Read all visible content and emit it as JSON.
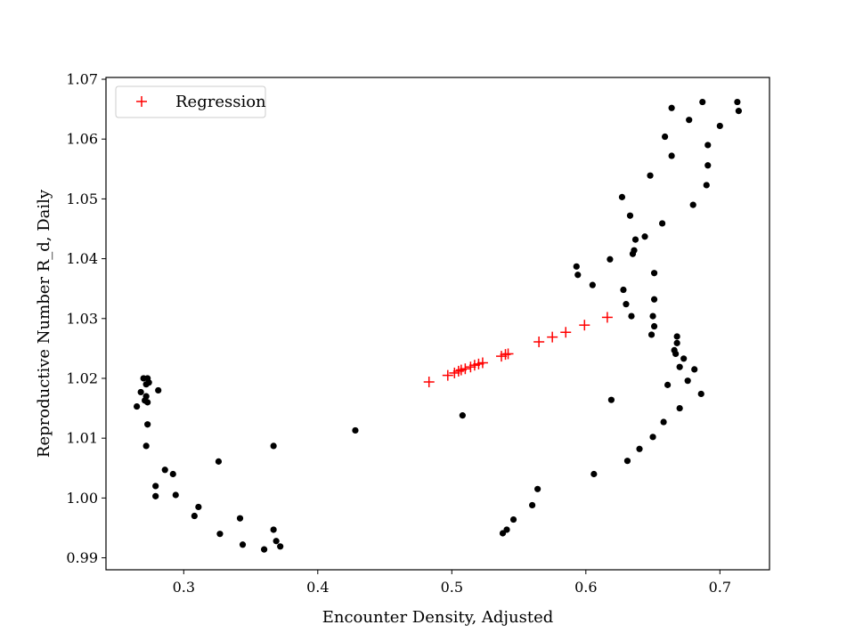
{
  "chart_data": {
    "type": "scatter",
    "title": "",
    "xlabel": "Encounter Density, Adjusted",
    "ylabel": "Reproductive Number R_d, Daily",
    "xlim": [
      0.242,
      0.737
    ],
    "ylim": [
      0.988,
      1.0703
    ],
    "x_ticks": [
      0.3,
      0.4,
      0.5,
      0.6,
      0.7
    ],
    "x_tick_labels": [
      "0.3",
      "0.4",
      "0.5",
      "0.6",
      "0.7"
    ],
    "y_ticks": [
      0.99,
      1.0,
      1.01,
      1.02,
      1.03,
      1.04,
      1.05,
      1.06,
      1.07
    ],
    "y_tick_labels": [
      "0.99",
      "1.00",
      "1.01",
      "1.02",
      "1.03",
      "1.04",
      "1.05",
      "1.06",
      "1.07"
    ],
    "grid": false,
    "legend": {
      "position": "top-left",
      "entries": [
        "Regression"
      ]
    },
    "colors": {
      "data_points": "#000000",
      "regression": "#ff0000"
    },
    "series": [
      {
        "name": "",
        "marker": "circle",
        "points": [
          [
            0.265,
            1.0153
          ],
          [
            0.268,
            1.0177
          ],
          [
            0.27,
            1.02
          ],
          [
            0.271,
            1.0163
          ],
          [
            0.272,
            1.019
          ],
          [
            0.273,
            1.02
          ],
          [
            0.272,
            1.017
          ],
          [
            0.273,
            1.016
          ],
          [
            0.274,
            1.0193
          ],
          [
            0.281,
            1.018
          ],
          [
            0.273,
            1.0123
          ],
          [
            0.272,
            1.0087
          ],
          [
            0.286,
            1.0047
          ],
          [
            0.292,
            1.004
          ],
          [
            0.279,
            1.002
          ],
          [
            0.279,
            1.0003
          ],
          [
            0.294,
            1.0005
          ],
          [
            0.308,
            0.997
          ],
          [
            0.311,
            0.9985
          ],
          [
            0.326,
            1.0061
          ],
          [
            0.327,
            0.994
          ],
          [
            0.342,
            0.9966
          ],
          [
            0.344,
            0.9922
          ],
          [
            0.36,
            0.9914
          ],
          [
            0.367,
            0.9947
          ],
          [
            0.369,
            0.9928
          ],
          [
            0.372,
            0.9919
          ],
          [
            0.367,
            1.0087
          ],
          [
            0.428,
            1.0113
          ],
          [
            0.508,
            1.0138
          ],
          [
            0.538,
            0.9941
          ],
          [
            0.541,
            0.9947
          ],
          [
            0.546,
            0.9964
          ],
          [
            0.56,
            0.9988
          ],
          [
            0.564,
            1.0015
          ],
          [
            0.593,
            1.0387
          ],
          [
            0.594,
            1.0373
          ],
          [
            0.605,
            1.0356
          ],
          [
            0.606,
            1.004
          ],
          [
            0.618,
            1.0399
          ],
          [
            0.619,
            1.0164
          ],
          [
            0.627,
            1.0503
          ],
          [
            0.628,
            1.0348
          ],
          [
            0.63,
            1.0324
          ],
          [
            0.631,
            1.0062
          ],
          [
            0.633,
            1.0472
          ],
          [
            0.634,
            1.0304
          ],
          [
            0.635,
            1.0408
          ],
          [
            0.636,
            1.0414
          ],
          [
            0.637,
            1.0432
          ],
          [
            0.64,
            1.0082
          ],
          [
            0.644,
            1.0437
          ],
          [
            0.648,
            1.0539
          ],
          [
            0.649,
            1.0273
          ],
          [
            0.65,
            1.0102
          ],
          [
            0.65,
            1.0304
          ],
          [
            0.651,
            1.0287
          ],
          [
            0.651,
            1.0332
          ],
          [
            0.651,
            1.0376
          ],
          [
            0.657,
            1.0459
          ],
          [
            0.658,
            1.0127
          ],
          [
            0.659,
            1.0604
          ],
          [
            0.661,
            1.0189
          ],
          [
            0.664,
            1.0652
          ],
          [
            0.664,
            1.0572
          ],
          [
            0.666,
            1.0247
          ],
          [
            0.667,
            1.0241
          ],
          [
            0.668,
            1.027
          ],
          [
            0.668,
            1.0259
          ],
          [
            0.67,
            1.015
          ],
          [
            0.67,
            1.0219
          ],
          [
            0.673,
            1.0233
          ],
          [
            0.676,
            1.0196
          ],
          [
            0.677,
            1.0632
          ],
          [
            0.68,
            1.049
          ],
          [
            0.681,
            1.0215
          ],
          [
            0.686,
            1.0174
          ],
          [
            0.687,
            1.0662
          ],
          [
            0.69,
            1.0523
          ],
          [
            0.691,
            1.0556
          ],
          [
            0.691,
            1.059
          ],
          [
            0.7,
            1.0622
          ],
          [
            0.713,
            1.0662
          ],
          [
            0.714,
            1.0647
          ]
        ]
      },
      {
        "name": "Regression",
        "marker": "plus",
        "points": [
          [
            0.483,
            1.0194
          ],
          [
            0.497,
            1.0205
          ],
          [
            0.502,
            1.0209
          ],
          [
            0.505,
            1.0212
          ],
          [
            0.507,
            1.0214
          ],
          [
            0.51,
            1.0216
          ],
          [
            0.514,
            1.0219
          ],
          [
            0.517,
            1.0222
          ],
          [
            0.52,
            1.0224
          ],
          [
            0.523,
            1.0226
          ],
          [
            0.537,
            1.0237
          ],
          [
            0.54,
            1.024
          ],
          [
            0.542,
            1.0241
          ],
          [
            0.565,
            1.0261
          ],
          [
            0.575,
            1.0269
          ],
          [
            0.585,
            1.0277
          ],
          [
            0.599,
            1.0289
          ],
          [
            0.616,
            1.0302
          ]
        ]
      }
    ]
  }
}
